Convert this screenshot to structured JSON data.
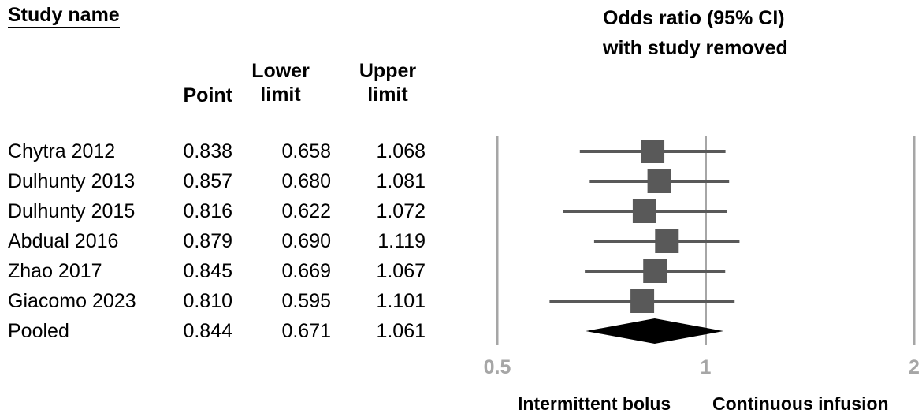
{
  "headers": {
    "study": "Study name",
    "plot_title_line1": "Odds ratio (95% CI)",
    "plot_title_line2": "with study removed",
    "point": "Point",
    "lower_line1": "Lower",
    "lower_line2": "limit",
    "upper_line1": "Upper",
    "upper_line2": "limit"
  },
  "rows": [
    {
      "study": "Chytra 2012",
      "point": "0.838",
      "lower": "0.658",
      "upper": "1.068"
    },
    {
      "study": "Dulhunty 2013",
      "point": "0.857",
      "lower": "0.680",
      "upper": "1.081"
    },
    {
      "study": "Dulhunty 2015",
      "point": "0.816",
      "lower": "0.622",
      "upper": "1.072"
    },
    {
      "study": "Abdual 2016",
      "point": "0.879",
      "lower": "0.690",
      "upper": "1.119"
    },
    {
      "study": "Zhao 2017",
      "point": "0.845",
      "lower": "0.669",
      "upper": "1.067"
    },
    {
      "study": "Giacomo 2023",
      "point": "0.810",
      "lower": "0.595",
      "upper": "1.101"
    },
    {
      "study": "Pooled",
      "point": "0.844",
      "lower": "0.671",
      "upper": "1.061"
    }
  ],
  "axis": {
    "ticks": [
      "0.5",
      "1",
      "2"
    ],
    "left_label": "Intermittent bolus",
    "right_label": "Continuous infusion"
  },
  "colors": {
    "box": "#595959",
    "line": "#595959",
    "diamond": "#000000",
    "ref_line": "#a6a6a6",
    "tick_text": "#a6a6a6"
  },
  "chart_data": {
    "type": "scatter",
    "title": "Odds ratio (95% CI) with study removed",
    "xscale": "log",
    "xlim": [
      0.5,
      2
    ],
    "xticks": [
      0.5,
      1,
      2
    ],
    "reference_line": 1,
    "categories": [
      "Chytra 2012",
      "Dulhunty 2013",
      "Dulhunty 2015",
      "Abdual 2016",
      "Zhao 2017",
      "Giacomo 2023",
      "Pooled"
    ],
    "point": [
      0.838,
      0.857,
      0.816,
      0.879,
      0.845,
      0.81,
      0.844
    ],
    "lower": [
      0.658,
      0.68,
      0.622,
      0.69,
      0.669,
      0.595,
      0.671
    ],
    "upper": [
      1.068,
      1.081,
      1.072,
      1.119,
      1.067,
      1.101,
      1.061
    ],
    "pooled_index": 6,
    "direction_labels": [
      "Intermittent bolus",
      "Continuous infusion"
    ]
  }
}
